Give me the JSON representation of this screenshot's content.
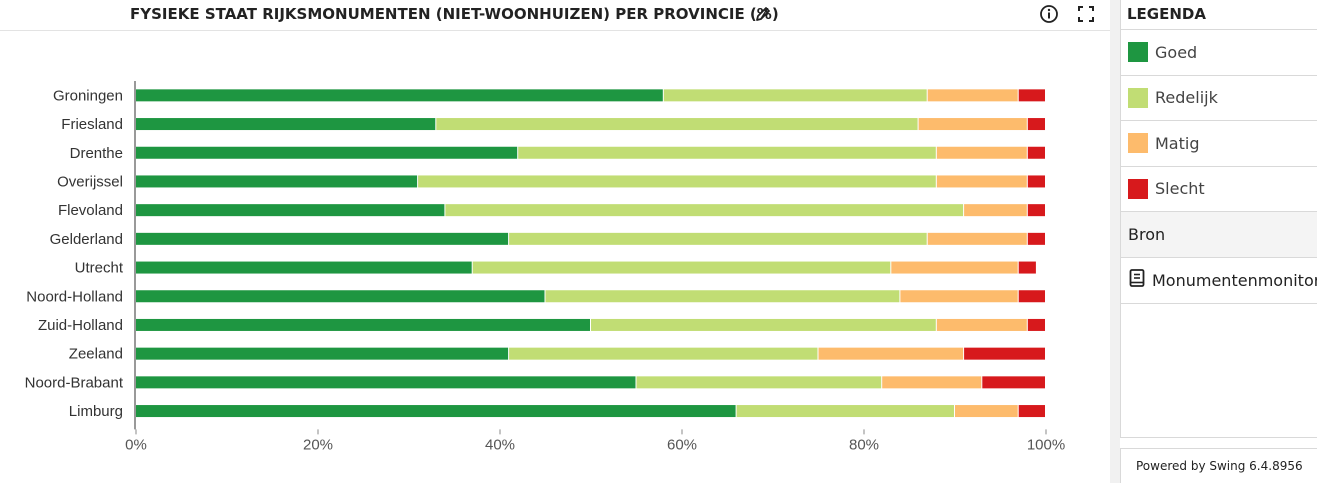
{
  "header": {
    "title": "FYSIEKE STAAT RIJKSMONUMENTEN (NIET-WOONHUIZEN) PER PROVINCIE (%)",
    "icons": [
      "pencil-icon",
      "info-icon",
      "fullscreen-icon"
    ]
  },
  "legend": {
    "title": "LEGENDA",
    "items": [
      {
        "label": "Goed",
        "color": "#1e9641"
      },
      {
        "label": "Redelijk",
        "color": "#c1dd74"
      },
      {
        "label": "Matig",
        "color": "#fdbb6c"
      },
      {
        "label": "Slecht",
        "color": "#d7191c"
      }
    ]
  },
  "source": {
    "header": "Bron",
    "link_label": "Monumentenmonitor",
    "link_icon": "book-icon"
  },
  "footer": {
    "powered_by": "Powered by Swing 6.4.8956"
  },
  "chart_data": {
    "type": "bar",
    "orientation": "horizontal",
    "stacked": true,
    "title": "FYSIEKE STAAT RIJKSMONUMENTEN (NIET-WOONHUIZEN) PER PROVINCIE (%)",
    "categories": [
      "Groningen",
      "Friesland",
      "Drenthe",
      "Overijssel",
      "Flevoland",
      "Gelderland",
      "Utrecht",
      "Noord-Holland",
      "Zuid-Holland",
      "Zeeland",
      "Noord-Brabant",
      "Limburg"
    ],
    "series": [
      {
        "name": "Goed",
        "color": "#1e9641",
        "values": [
          58,
          33,
          42,
          31,
          34,
          41,
          37,
          45,
          50,
          41,
          55,
          66
        ]
      },
      {
        "name": "Redelijk",
        "color": "#c1dd74",
        "values": [
          29,
          53,
          46,
          57,
          57,
          46,
          46,
          39,
          38,
          34,
          27,
          24
        ]
      },
      {
        "name": "Matig",
        "color": "#fdbb6c",
        "values": [
          10,
          12,
          10,
          10,
          7,
          11,
          14,
          13,
          10,
          16,
          11,
          7
        ]
      },
      {
        "name": "Slecht",
        "color": "#d7191c",
        "values": [
          3,
          2,
          2,
          2,
          2,
          2,
          2,
          3,
          2,
          9,
          7,
          3
        ]
      }
    ],
    "xlim": [
      0,
      100
    ],
    "xticks": [
      0,
      20,
      40,
      60,
      80,
      100
    ],
    "xtick_labels": [
      "0%",
      "20%",
      "40%",
      "60%",
      "80%",
      "100%"
    ],
    "grid": false
  }
}
